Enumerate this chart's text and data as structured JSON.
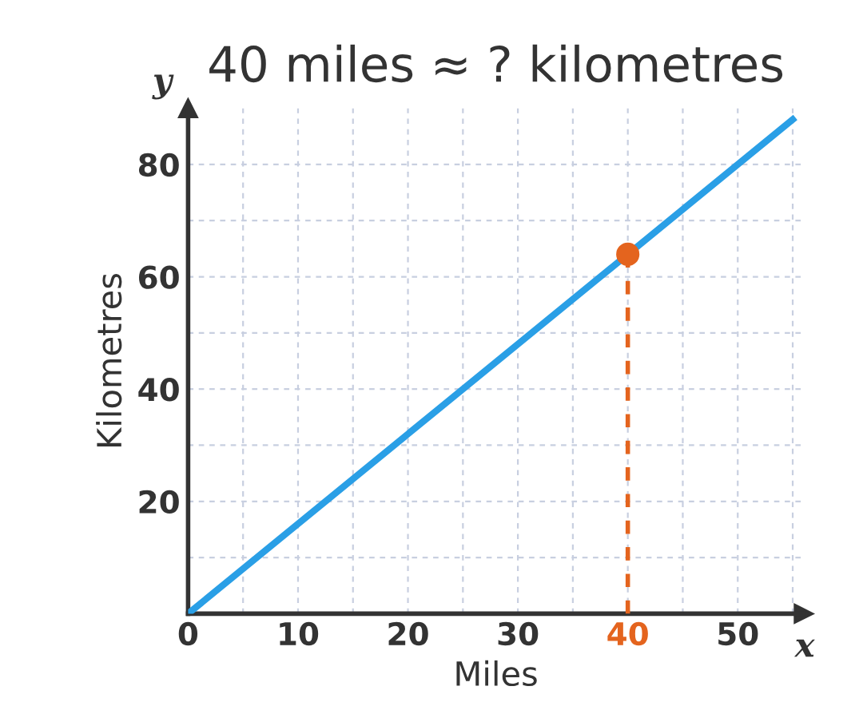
{
  "chart_data": {
    "type": "line",
    "title": "40 miles ≈ ? kilometres",
    "xlabel": "Miles",
    "ylabel": "Kilometres",
    "xlim": [
      0,
      56
    ],
    "ylim": [
      0,
      90
    ],
    "xticks": [
      0,
      {
        "value": 5,
        "label": null
      },
      10,
      {
        "value": 15,
        "label": null
      },
      20,
      {
        "value": 25,
        "label": null
      },
      30,
      {
        "value": 35,
        "label": null
      },
      40,
      {
        "value": 45,
        "label": null
      },
      50,
      {
        "value": 55,
        "label": null
      }
    ],
    "yticks": [
      {
        "value": 0,
        "label": null
      },
      {
        "value": 10,
        "label": null
      },
      20,
      {
        "value": 30,
        "label": null
      },
      40,
      {
        "value": 50,
        "label": null
      },
      60,
      {
        "value": 70,
        "label": null
      },
      80
    ],
    "grid": true,
    "annotations": [
      "x",
      "y"
    ],
    "series": [
      {
        "color": "#2a9fe6",
        "x": [
          0,
          55
        ],
        "values": [
          0,
          88
        ],
        "line_style": "solid"
      },
      {
        "color": "#e4641e",
        "x": [
          40,
          40
        ],
        "values": [
          0,
          64
        ],
        "line_style": "dashed"
      },
      {
        "type": "scatter",
        "color": "#e4641e",
        "x": [
          40
        ],
        "values": [
          64
        ],
        "marker": "circle"
      }
    ]
  }
}
